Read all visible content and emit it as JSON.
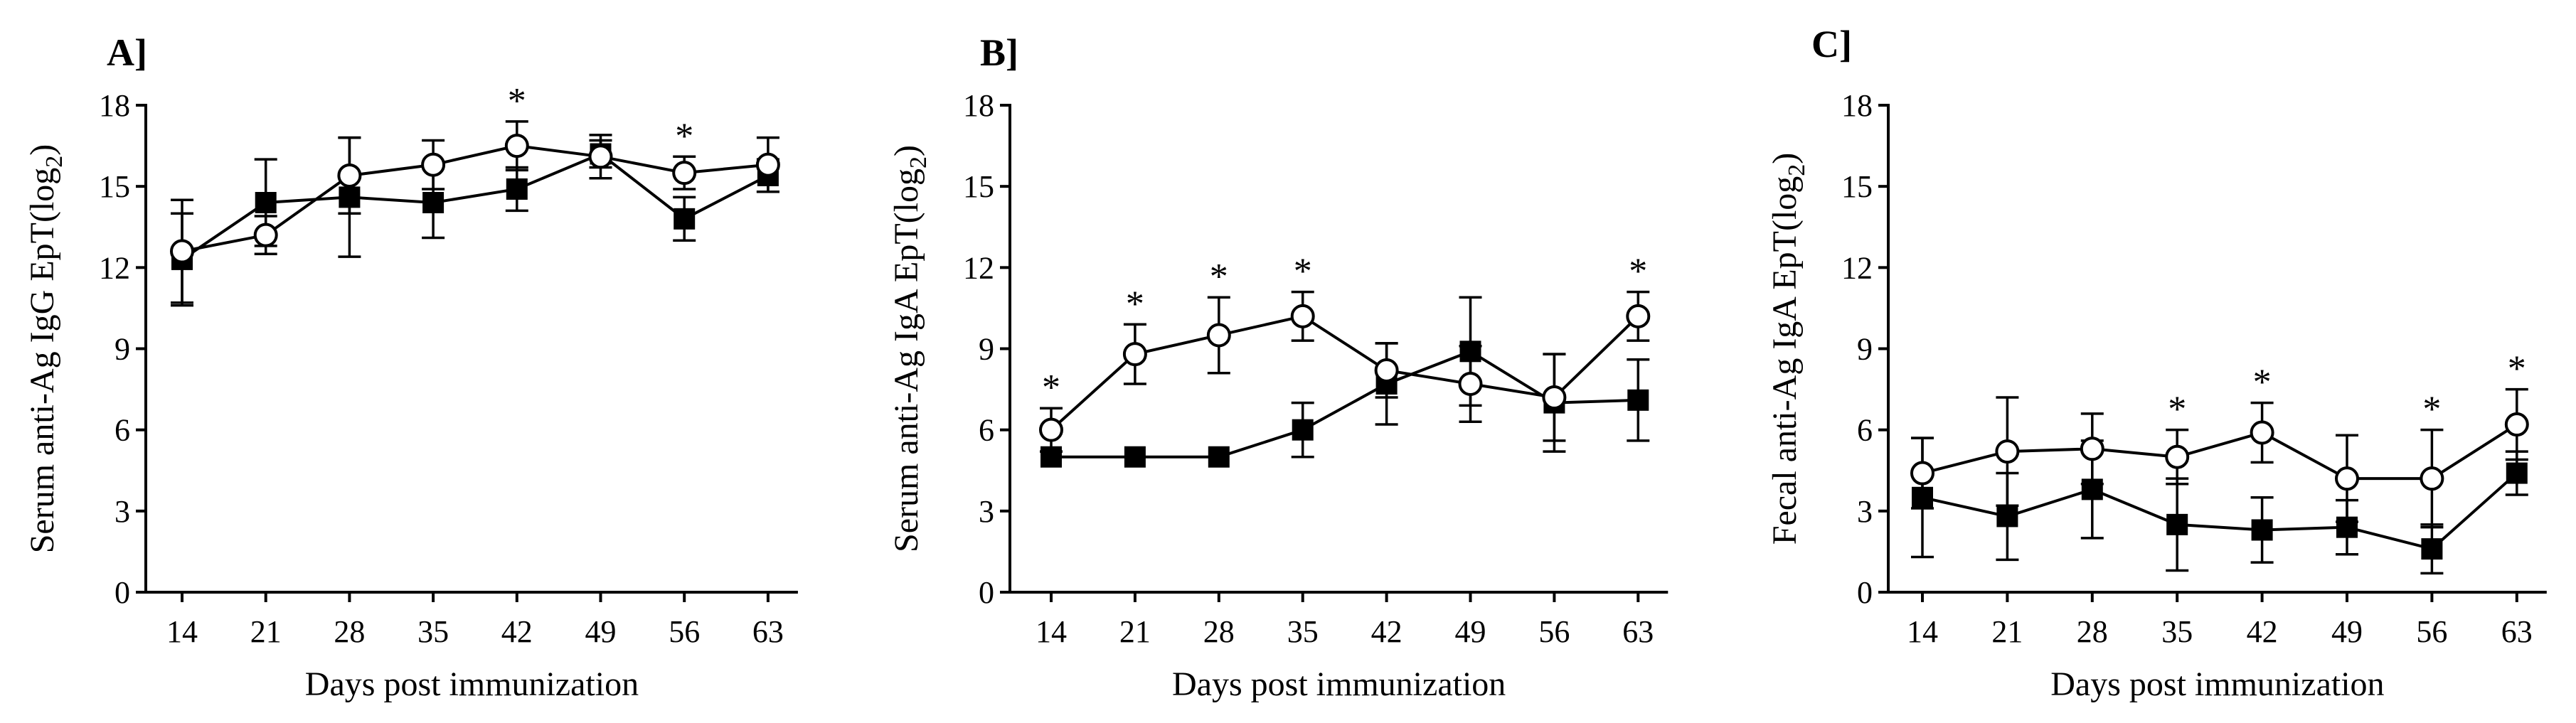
{
  "chart_data": [
    {
      "type": "line",
      "panel_label": "A]",
      "ylabel_main": "Serum anti-Ag IgG EpT(log",
      "ylabel_sub": "2",
      "ylabel_close": ")",
      "xlabel": "Days post immunization",
      "ylim": [
        0,
        18
      ],
      "yticks": [
        0,
        3,
        6,
        9,
        12,
        15,
        18
      ],
      "ytick_labels": [
        "0",
        "3",
        "6",
        "9",
        "12",
        "15",
        "18"
      ],
      "categories": [
        "14",
        "21",
        "28",
        "35",
        "42",
        "49",
        "56",
        "63"
      ],
      "series": [
        {
          "name": "open circle",
          "marker": "open-circle",
          "values": [
            12.6,
            13.2,
            15.4,
            15.8,
            16.5,
            16.1,
            15.5,
            15.8
          ],
          "errors": [
            1.9,
            0.7,
            1.4,
            0.9,
            0.9,
            0.8,
            0.6,
            1.0
          ]
        },
        {
          "name": "filled square",
          "marker": "filled-square",
          "values": [
            12.3,
            14.4,
            14.6,
            14.4,
            14.9,
            16.2,
            13.8,
            15.4
          ],
          "errors": [
            1.7,
            1.6,
            2.2,
            1.3,
            0.8,
            0.5,
            0.8,
            0.6
          ]
        }
      ],
      "significance": [
        "",
        "",
        "",
        "",
        "*",
        "",
        "*",
        ""
      ]
    },
    {
      "type": "line",
      "panel_label": "B]",
      "ylabel_main": "Serum anti-Ag IgA EpT(log",
      "ylabel_sub": "2",
      "ylabel_close": ")",
      "xlabel": "Days post immunization",
      "ylim": [
        0,
        18
      ],
      "yticks": [
        0,
        3,
        6,
        9,
        12,
        15,
        18
      ],
      "ytick_labels": [
        "0",
        "3",
        "6",
        "9",
        "12",
        "15",
        "18"
      ],
      "categories": [
        "14",
        "21",
        "28",
        "35",
        "42",
        "49",
        "56",
        "63"
      ],
      "series": [
        {
          "name": "open circle",
          "marker": "open-circle",
          "values": [
            6.0,
            8.8,
            9.5,
            10.2,
            8.2,
            7.7,
            7.2,
            10.2
          ],
          "errors": [
            0.8,
            1.1,
            1.4,
            0.9,
            1.0,
            1.4,
            1.6,
            0.9
          ]
        },
        {
          "name": "filled square",
          "marker": "filled-square",
          "values": [
            5.0,
            5.0,
            5.0,
            6.0,
            7.7,
            8.9,
            7.0,
            7.1
          ],
          "errors": [
            0.0,
            0.0,
            0.0,
            1.0,
            1.5,
            2.0,
            1.8,
            1.5
          ]
        }
      ],
      "significance": [
        "*",
        "*",
        "*",
        "*",
        "",
        "",
        "",
        "*"
      ]
    },
    {
      "type": "line",
      "panel_label": "C]",
      "ylabel_main": "Fecal anti-Ag IgA EpT(log",
      "ylabel_sub": "2",
      "ylabel_close": ")",
      "xlabel": "Days post immunization",
      "ylim": [
        0,
        18
      ],
      "yticks": [
        0,
        3,
        6,
        9,
        12,
        15,
        18
      ],
      "ytick_labels": [
        "0",
        "3",
        "6",
        "9",
        "12",
        "15",
        "18"
      ],
      "categories": [
        "14",
        "21",
        "28",
        "35",
        "42",
        "49",
        "56",
        "63"
      ],
      "series": [
        {
          "name": "open circle",
          "marker": "open-circle",
          "values": [
            4.4,
            5.2,
            5.3,
            5.0,
            5.9,
            4.2,
            4.2,
            6.2
          ],
          "errors": [
            1.3,
            2.0,
            1.3,
            1.0,
            1.1,
            1.6,
            1.8,
            1.3
          ]
        },
        {
          "name": "filled square",
          "marker": "filled-square",
          "values": [
            3.5,
            2.8,
            3.8,
            2.5,
            2.3,
            2.4,
            1.6,
            4.4
          ],
          "errors": [
            2.2,
            1.6,
            1.8,
            1.7,
            1.2,
            1.0,
            0.9,
            0.8
          ]
        }
      ],
      "significance": [
        "",
        "",
        "",
        "*",
        "*",
        "",
        "*",
        "*"
      ]
    }
  ]
}
